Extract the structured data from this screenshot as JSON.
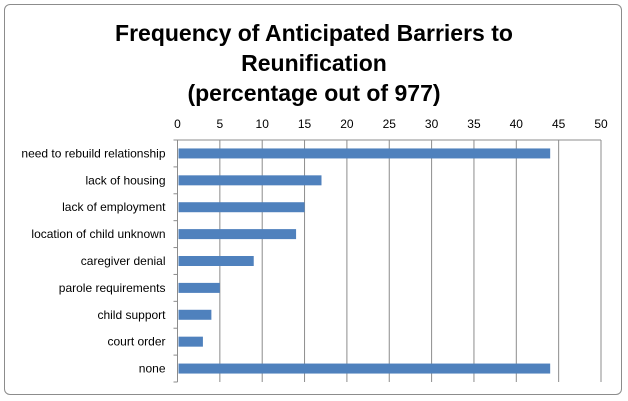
{
  "chart_data": {
    "type": "bar",
    "orientation": "horizontal",
    "title_lines": [
      "Frequency of Anticipated Barriers to",
      "Reunification",
      "(percentage out of 977)"
    ],
    "categories": [
      "need to rebuild relationship",
      "lack of housing",
      "lack of employment",
      "location of child unknown",
      "caregiver denial",
      "parole requirements",
      "child support",
      "court order",
      "none"
    ],
    "values": [
      44,
      17,
      15,
      14,
      9,
      5,
      4,
      3,
      44
    ],
    "xlim": [
      0,
      50
    ],
    "xticks": [
      0,
      5,
      10,
      15,
      20,
      25,
      30,
      35,
      40,
      45,
      50
    ],
    "xaxis_position": "top",
    "grid": true,
    "legend": "none",
    "bar_color": "#4f81bd",
    "grid_color": "#8c8c8c"
  }
}
